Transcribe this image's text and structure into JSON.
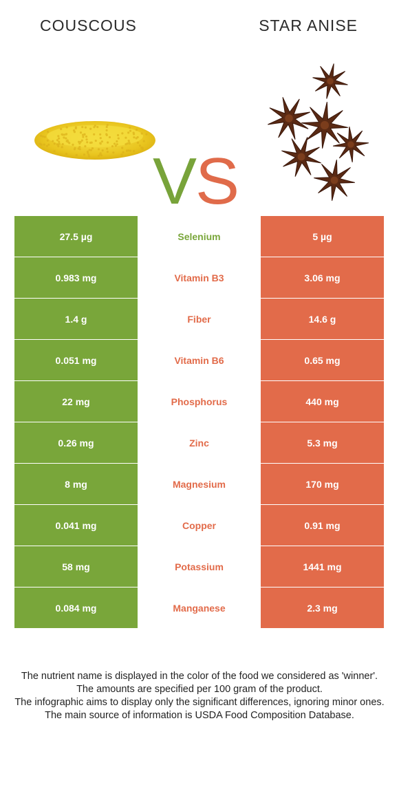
{
  "header": {
    "left_food": "COUSCOUS",
    "right_food": "STAR ANISE",
    "vs_v": "V",
    "vs_s": "S"
  },
  "colors": {
    "left": "#79a63a",
    "right": "#e26b4a"
  },
  "rows": [
    {
      "left": "27.5 µg",
      "nutrient": "Selenium",
      "right": "5 µg",
      "winner": "left"
    },
    {
      "left": "0.983 mg",
      "nutrient": "Vitamin B3",
      "right": "3.06 mg",
      "winner": "right"
    },
    {
      "left": "1.4 g",
      "nutrient": "Fiber",
      "right": "14.6 g",
      "winner": "right"
    },
    {
      "left": "0.051 mg",
      "nutrient": "Vitamin B6",
      "right": "0.65 mg",
      "winner": "right"
    },
    {
      "left": "22 mg",
      "nutrient": "Phosphorus",
      "right": "440 mg",
      "winner": "right"
    },
    {
      "left": "0.26 mg",
      "nutrient": "Zinc",
      "right": "5.3 mg",
      "winner": "right"
    },
    {
      "left": "8 mg",
      "nutrient": "Magnesium",
      "right": "170 mg",
      "winner": "right"
    },
    {
      "left": "0.041 mg",
      "nutrient": "Copper",
      "right": "0.91 mg",
      "winner": "right"
    },
    {
      "left": "58 mg",
      "nutrient": "Potassium",
      "right": "1441 mg",
      "winner": "right"
    },
    {
      "left": "0.084 mg",
      "nutrient": "Manganese",
      "right": "2.3 mg",
      "winner": "right"
    }
  ],
  "footer": {
    "line1": "The nutrient name is displayed in the color of the food we considered as 'winner'.",
    "line2": "The amounts are specified per 100 gram of the product.",
    "line3": "The infographic aims to display only the significant differences, ignoring minor ones.",
    "line4": "The main source of information is USDA Food Composition Database."
  }
}
